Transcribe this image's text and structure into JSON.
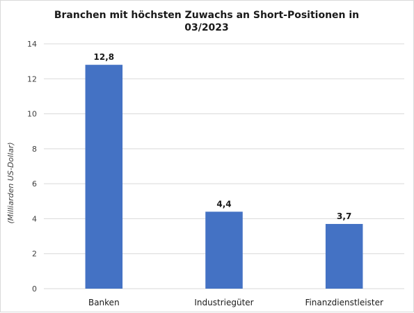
{
  "chart_data": {
    "type": "bar",
    "title_lines": [
      "Branchen mit höchsten Zuwachs an Short-Positionen in",
      "03/2023"
    ],
    "ylabel": "(Milliarden US-Dollar)",
    "xlabel": "",
    "categories": [
      "Banken",
      "Industriegüter",
      "Finanzdienstleister"
    ],
    "values": [
      12.8,
      4.4,
      3.7
    ],
    "data_labels": [
      "12,8",
      "4,4",
      "3,7"
    ],
    "ylim": [
      0,
      14
    ],
    "yticks": [
      0,
      2,
      4,
      6,
      8,
      10,
      12,
      14
    ],
    "ytick_labels": [
      "0",
      "2",
      "4",
      "6",
      "8",
      "10",
      "12",
      "14"
    ],
    "grid": true,
    "legend": "none",
    "bar_color": "#4472c4",
    "grid_color": "#d9d9d9"
  }
}
